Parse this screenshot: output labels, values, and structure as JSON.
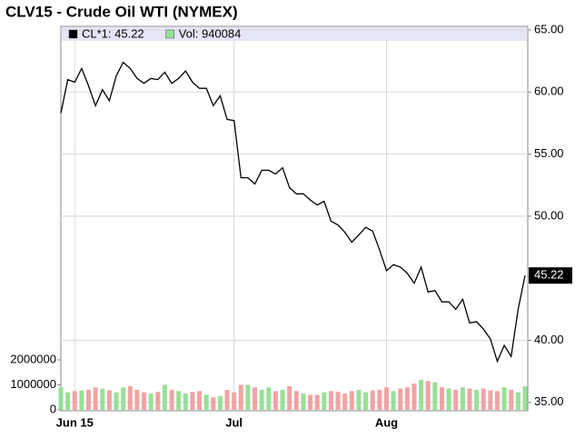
{
  "chart_data": {
    "type": "line",
    "title": "CLV15 - Crude Oil WTI (NYMEX)",
    "categories": [
      null,
      null,
      "Jun 15",
      null,
      null,
      null,
      null,
      null,
      null,
      null,
      null,
      null,
      null,
      null,
      null,
      null,
      null,
      null,
      null,
      null,
      null,
      null,
      null,
      null,
      null,
      "Jul",
      null,
      null,
      null,
      null,
      null,
      null,
      null,
      null,
      null,
      null,
      null,
      null,
      null,
      null,
      null,
      null,
      null,
      null,
      null,
      null,
      null,
      "Aug",
      null,
      null,
      null,
      null,
      null,
      null,
      null,
      null,
      null,
      null,
      null,
      null,
      null,
      null,
      null,
      null,
      null,
      null,
      null,
      null
    ],
    "series": [
      {
        "name": "CL*1: 45.22",
        "color": "#000000",
        "values": [
          58.3,
          61.0,
          60.8,
          61.9,
          60.5,
          58.9,
          60.2,
          59.3,
          61.3,
          62.4,
          61.9,
          61.1,
          60.7,
          61.1,
          61.0,
          61.6,
          60.7,
          61.1,
          61.7,
          60.8,
          60.3,
          60.3,
          58.9,
          59.7,
          57.8,
          57.7,
          53.1,
          53.1,
          52.6,
          53.7,
          53.7,
          53.4,
          53.9,
          52.3,
          51.8,
          51.8,
          51.3,
          50.9,
          51.2,
          49.6,
          49.3,
          48.7,
          47.9,
          48.5,
          49.1,
          48.8,
          47.3,
          45.6,
          46.1,
          45.9,
          45.4,
          44.6,
          45.9,
          43.9,
          44.0,
          43.1,
          43.1,
          42.5,
          43.3,
          41.4,
          41.5,
          40.9,
          40.1,
          38.3,
          39.6,
          38.7,
          42.5,
          45.22
        ]
      },
      {
        "name": "Vol: 940084",
        "color": "#98e098",
        "axis": "y2",
        "type": "bar",
        "values": [
          900000,
          700000,
          750000,
          780000,
          800000,
          900000,
          850000,
          780000,
          700000,
          900000,
          950000,
          800000,
          700000,
          650000,
          720000,
          1000000,
          800000,
          750000,
          650000,
          720000,
          750000,
          600000,
          500000,
          550000,
          800000,
          700000,
          1000000,
          1000000,
          900000,
          800000,
          900000,
          750000,
          800000,
          950000,
          750000,
          650000,
          600000,
          600000,
          700000,
          750000,
          720000,
          650000,
          750000,
          800000,
          700000,
          780000,
          800000,
          900000,
          750000,
          850000,
          900000,
          1050000,
          1200000,
          1150000,
          1100000,
          900000,
          850000,
          800000,
          900000,
          850000,
          800000,
          850000,
          780000,
          750000,
          900000,
          800000,
          700000,
          940084
        ]
      }
    ],
    "down_color": "#f0a4a4",
    "ylim": [
      34.4,
      65
    ],
    "yticks": [
      {
        "value": 35,
        "label": "35.00"
      },
      {
        "value": 40,
        "label": "40.00"
      },
      {
        "value": 50,
        "label": "50.00"
      },
      {
        "value": 55,
        "label": "55.00"
      },
      {
        "value": 60,
        "label": "60.00"
      },
      {
        "value": 65,
        "label": "65.00"
      }
    ],
    "y2lim": [
      0,
      15200000
    ],
    "y2ticks": [
      0,
      1000000,
      2000000
    ],
    "grid": true
  }
}
